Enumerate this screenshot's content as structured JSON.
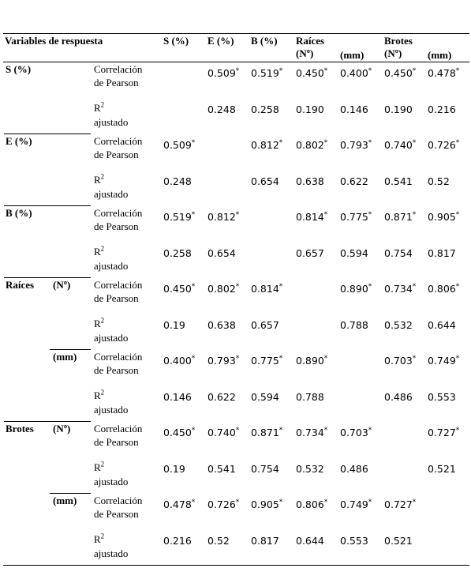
{
  "header": {
    "title": "Variables de respuesta",
    "columns": [
      {
        "top": "S (%)"
      },
      {
        "top": "E (%)"
      },
      {
        "top": "B (%)"
      },
      {
        "top": "Raíces",
        "sub": "(Nº)"
      },
      {
        "sub": "(mm)"
      },
      {
        "top": "Brotes",
        "sub": "(Nº)"
      },
      {
        "sub": "(mm)"
      }
    ]
  },
  "stats": {
    "corr": "Correlación de Pearson",
    "r2": "R",
    "r2_sup": "2",
    "r2_rest": "ajustado"
  },
  "groups": [
    {
      "label": "S (%)",
      "corr": [
        null,
        "0.509",
        "0.519",
        "0.450",
        "0.400",
        "0.450",
        "0.478"
      ],
      "corr_sig": [
        null,
        "*",
        "*",
        "*",
        "*",
        "*",
        "*"
      ],
      "r2": [
        null,
        "0.248",
        "0.258",
        "0.190",
        "0.146",
        "0.190",
        "0.216"
      ]
    },
    {
      "label": "E (%)",
      "corr": [
        "0.509",
        null,
        "0.812",
        "0.802",
        "0.793",
        "0.740",
        "0.726"
      ],
      "corr_sig": [
        "*",
        null,
        "*",
        "*",
        "*",
        "*",
        "*"
      ],
      "r2": [
        "0.248",
        null,
        "0.654",
        "0.638",
        "0.622",
        "0.541",
        "0.52"
      ]
    },
    {
      "label": "B (%)",
      "corr": [
        "0.519",
        "0.812",
        null,
        "0.814",
        "0.775",
        "0.871",
        "0.905"
      ],
      "corr_sig": [
        "*",
        "*",
        null,
        "*",
        "*",
        "*",
        "*"
      ],
      "r2": [
        "0.258",
        "0.654",
        null,
        "0.657",
        "0.594",
        "0.754",
        "0.817"
      ]
    },
    {
      "label": "Raíces",
      "sub": "(Nº)",
      "corr": [
        "0.450",
        "0.802",
        "0.814",
        null,
        "0.890",
        "0.734",
        "0.806"
      ],
      "corr_sig": [
        "*",
        "*",
        "*",
        null,
        "*",
        "*",
        "*"
      ],
      "r2": [
        "0.19",
        "0.638",
        "0.657",
        null,
        "0.788",
        "0.532",
        "0.644"
      ]
    },
    {
      "sub": "(mm)",
      "corr": [
        "0.400",
        "0.793",
        "0.775",
        "0.890",
        null,
        "0.703",
        "0.749"
      ],
      "corr_sig": [
        "*",
        "*",
        "*",
        "*",
        null,
        "*",
        "*"
      ],
      "r2": [
        "0.146",
        "0.622",
        "0.594",
        "0.788",
        null,
        "0.486",
        "0.553"
      ]
    },
    {
      "label": "Brotes",
      "sub": "(Nº)",
      "corr": [
        "0.450",
        "0.740",
        "0.871",
        "0.734",
        "0.703",
        null,
        "0.727"
      ],
      "corr_sig": [
        "*",
        "*",
        "*",
        "*",
        "*",
        null,
        "*"
      ],
      "r2": [
        "0.19",
        "0.541",
        "0.754",
        "0.532",
        "0.486",
        null,
        "0.521"
      ]
    },
    {
      "sub": "(mm)",
      "corr": [
        "0.478",
        "0.726",
        "0.905",
        "0.806",
        "0.749",
        "0.727",
        null
      ],
      "corr_sig": [
        "*",
        "*",
        "*",
        "*",
        "*",
        "*",
        null
      ],
      "r2": [
        "0.216",
        "0.52",
        "0.817",
        "0.644",
        "0.553",
        "0.521",
        null
      ]
    }
  ]
}
